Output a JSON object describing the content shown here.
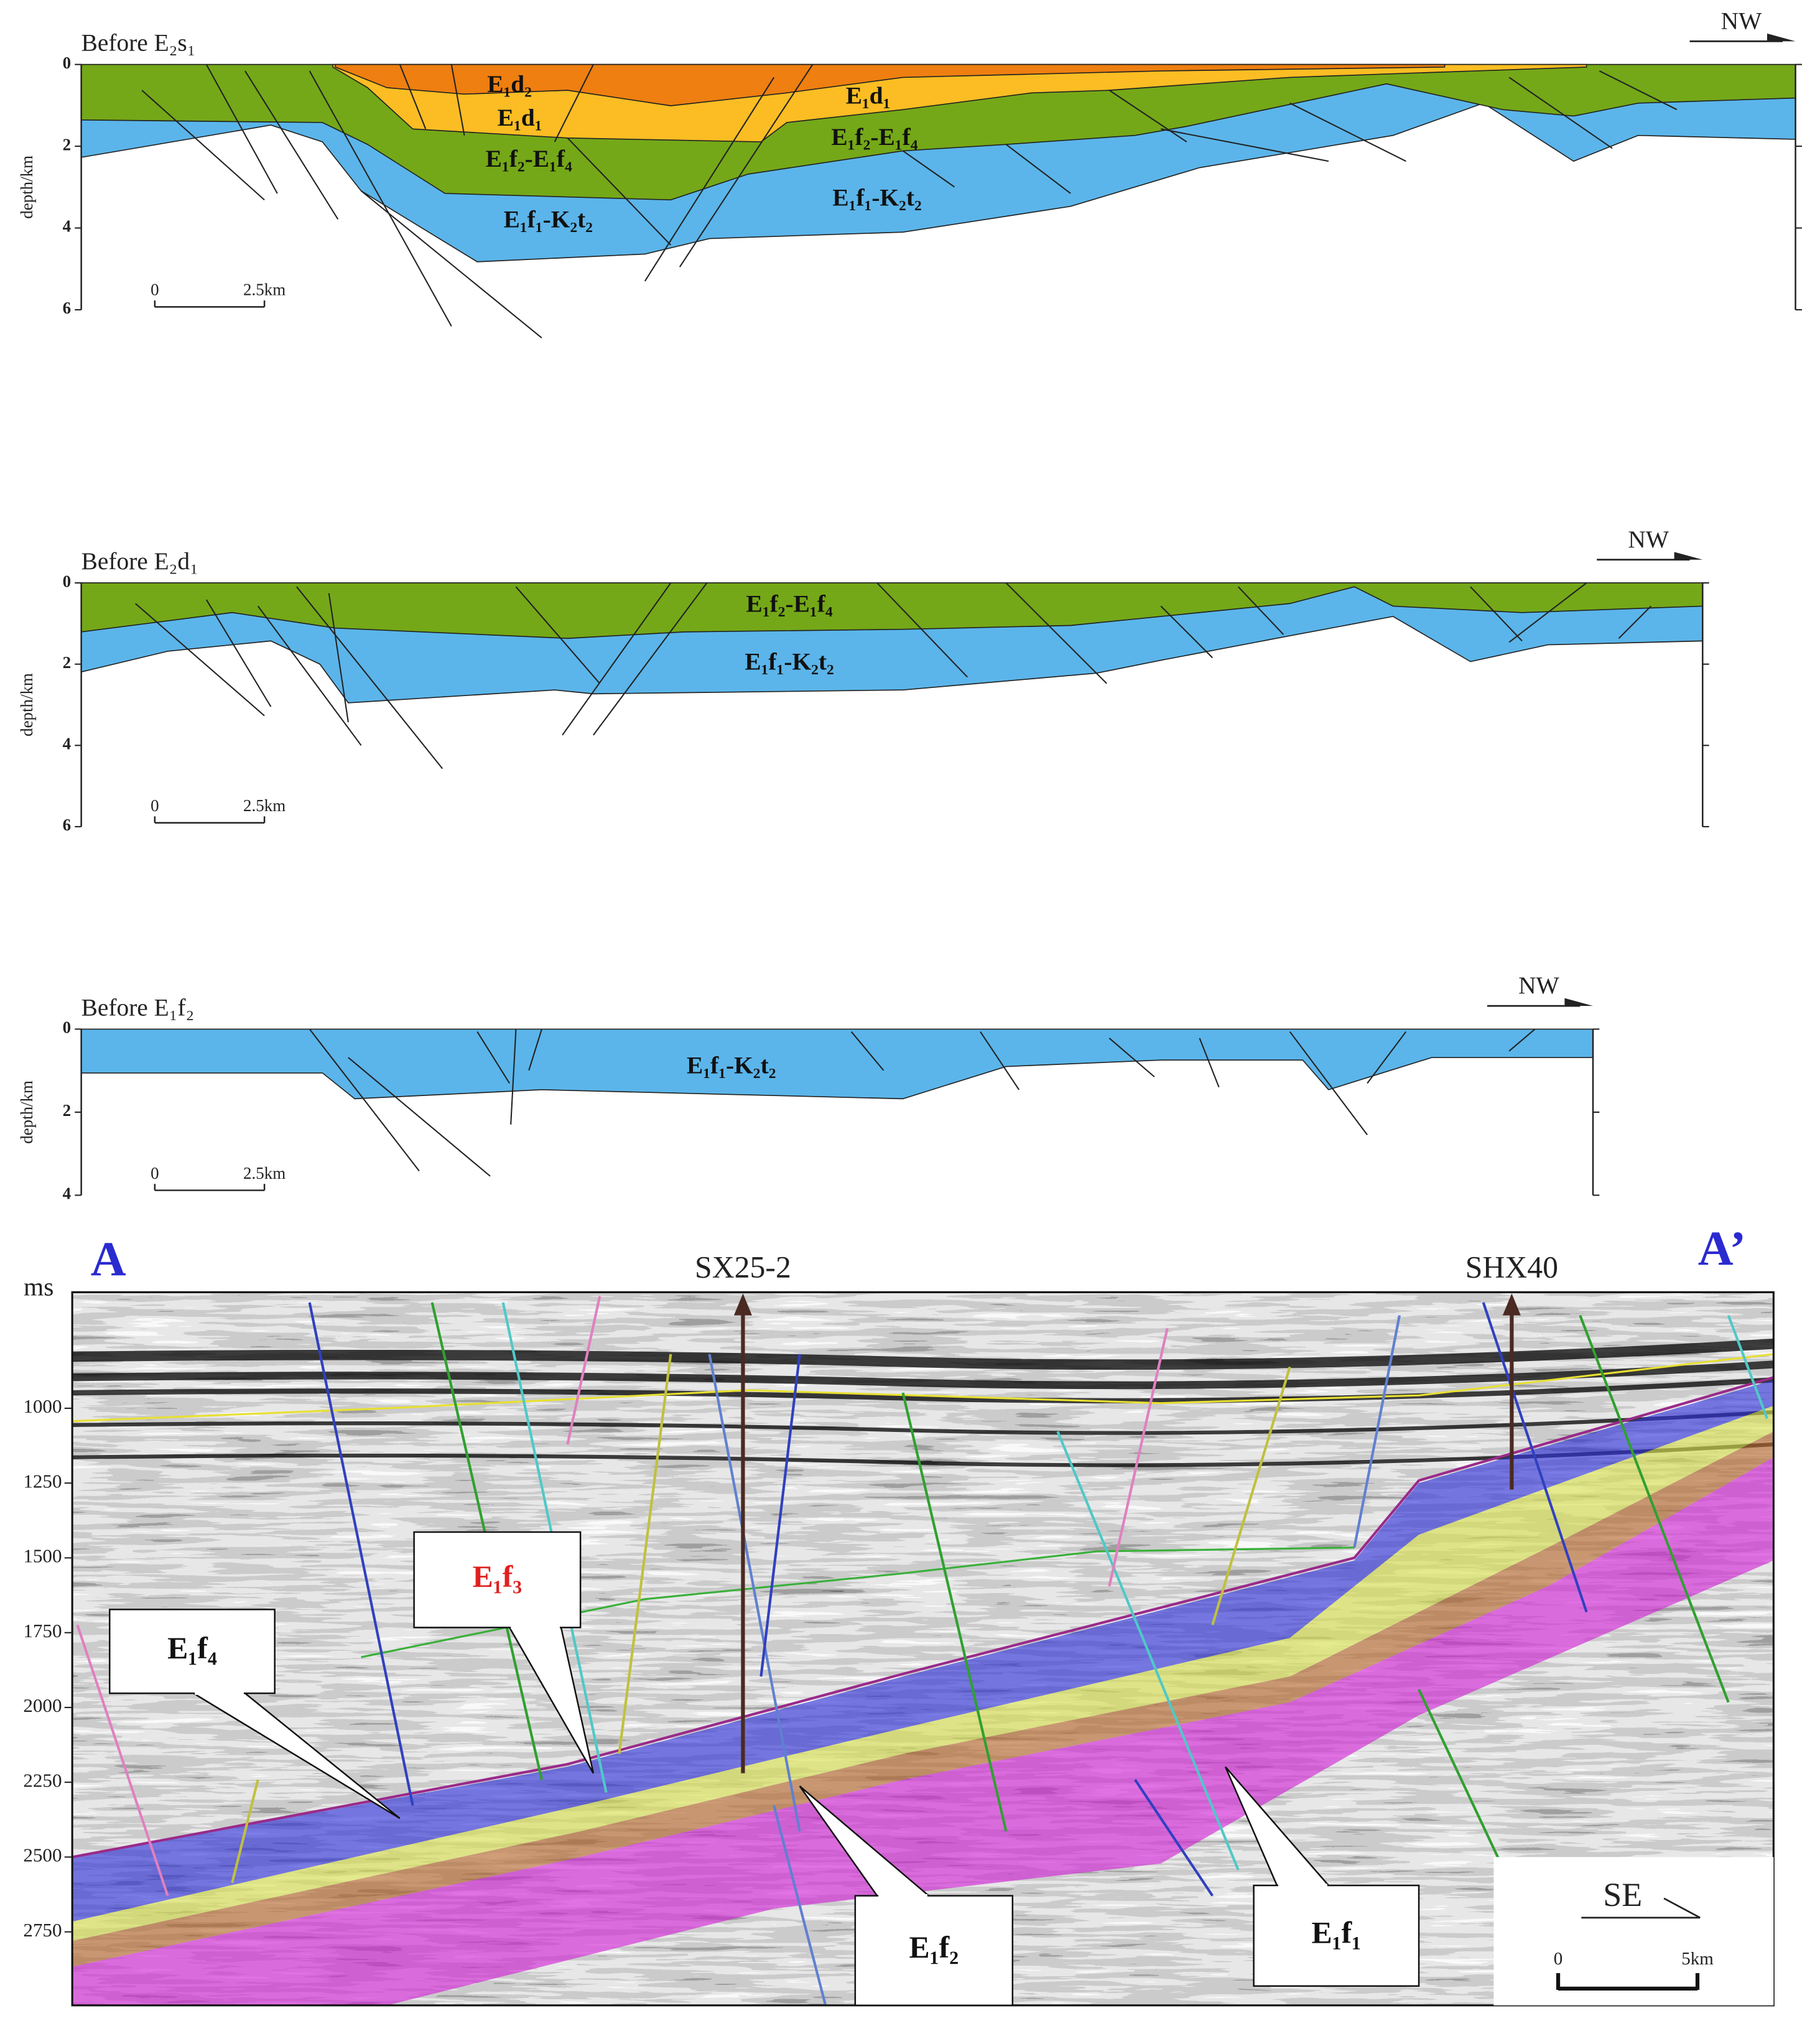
{
  "panels": [
    {
      "title": "Before E₂s₁",
      "direction": "NW",
      "axis_label": "depth/km",
      "ticks": [
        0,
        2,
        4,
        6
      ],
      "scale": [
        "0",
        "2.5km"
      ],
      "layers": [
        "E₁d₂",
        "E₁d₁",
        "E₁d₁",
        "E₁f₂-E₁f₄",
        "E₁f₂-E₁f₄",
        "E₁f₁-K₂t₂",
        "E₁f₁-K₂t₂"
      ]
    },
    {
      "title": "Before E₂d₁",
      "direction": "NW",
      "axis_label": "depth/km",
      "ticks": [
        0,
        2,
        4,
        6
      ],
      "scale": [
        "0",
        "2.5km"
      ],
      "layers": [
        "E₁f₂-E₁f₄",
        "E₁f₁-K₂t₂"
      ]
    },
    {
      "title": "Before E₁f₂",
      "direction": "NW",
      "axis_label": "depth/km",
      "ticks": [
        0,
        2,
        4
      ],
      "scale": [
        "0",
        "2.5km"
      ],
      "layers": [
        "E₁f₁-K₂t₂"
      ]
    }
  ],
  "section": {
    "start": "A",
    "end": "A’",
    "axis_label": "ms",
    "ticks": [
      1000,
      1250,
      1500,
      1750,
      2000,
      2250,
      2500,
      2750
    ],
    "wells": [
      "SX25-2",
      "SHX40"
    ],
    "callouts": [
      "E₁f₄",
      "E₁f₃",
      "E₁f₂",
      "E₁f₁"
    ],
    "direction": "SE",
    "scale": [
      "0",
      "5km"
    ]
  }
}
